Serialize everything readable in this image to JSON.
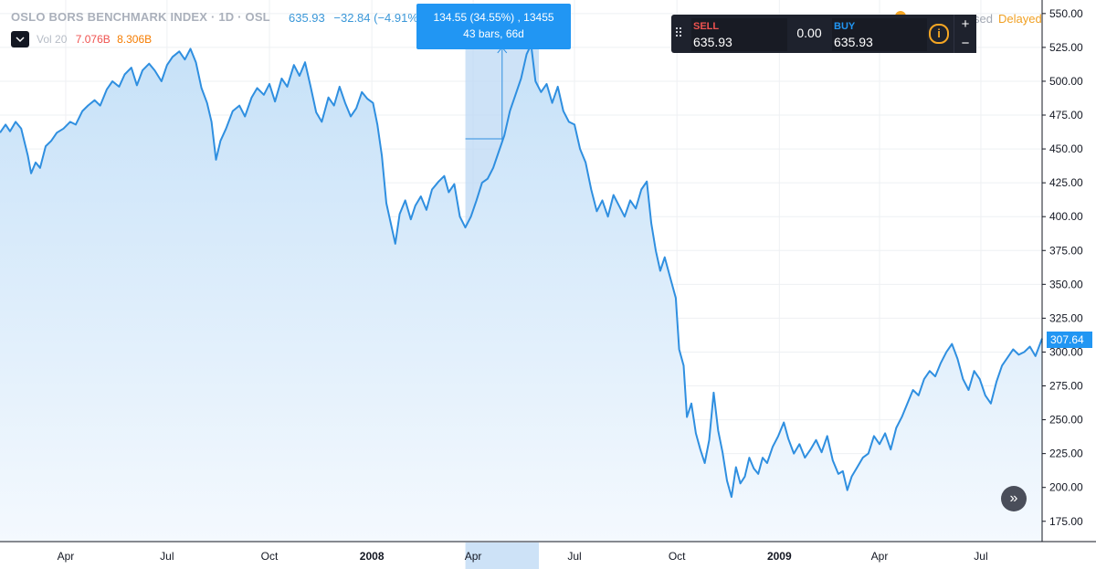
{
  "legend": {
    "title": "OSLO BORS BENCHMARK INDEX · 1D · OSL",
    "last": "635.93",
    "change": "−32.84 (−4.91%)",
    "vol_label": "Vol 20",
    "vol_a": "7.076B",
    "vol_b": "8.306B"
  },
  "status": {
    "closed_fragment": "sed",
    "delayed": "Delayed"
  },
  "trade_panel": {
    "sell_label": "SELL",
    "sell_value": "635.93",
    "spread": "0.00",
    "buy_label": "BUY",
    "buy_value": "635.93",
    "info_icon": "info-icon",
    "zoom_in": "+",
    "zoom_out": "−"
  },
  "measure": {
    "line1": "134.55 (34.55%) , 13455",
    "line2": "43 bars, 66d"
  },
  "scroll_button": "»",
  "price_tag": "307.64",
  "colors": {
    "line": "#2f8fe0",
    "fill_top": "#c6e1f8",
    "fill_bottom": "#f4f9fe",
    "grid": "#eef0f3",
    "axis_text": "#131722",
    "measure_fill": "#bcd8f4"
  },
  "chart_data": {
    "type": "area",
    "title": "OSLO BORS BENCHMARK INDEX",
    "xlabel": "",
    "ylabel": "",
    "grid": true,
    "legend": "top-left",
    "ylim": [
      160,
      560
    ],
    "xlim": [
      "2007-02-01",
      "2009-08-25"
    ],
    "y_ticks": [
      550,
      525,
      500,
      475,
      450,
      425,
      400,
      375,
      350,
      325,
      300,
      275,
      250,
      225,
      200,
      175
    ],
    "x_ticks": [
      {
        "date": "2007-04-01",
        "label": "Apr"
      },
      {
        "date": "2007-07-01",
        "label": "Jul"
      },
      {
        "date": "2007-10-01",
        "label": "Oct"
      },
      {
        "date": "2008-01-01",
        "label": "2008"
      },
      {
        "date": "2008-04-01",
        "label": "Apr"
      },
      {
        "date": "2008-07-01",
        "label": "Jul"
      },
      {
        "date": "2008-10-01",
        "label": "Oct"
      },
      {
        "date": "2009-01-01",
        "label": "2009"
      },
      {
        "date": "2009-04-01",
        "label": "Apr"
      },
      {
        "date": "2009-07-01",
        "label": "Jul"
      }
    ],
    "measure_range": {
      "x": [
        "2008-03-25",
        "2008-05-30"
      ],
      "y": [
        390,
        525
      ]
    },
    "series": [
      {
        "values": [
          [
            "2007-02-01",
            462
          ],
          [
            "2007-02-06",
            468
          ],
          [
            "2007-02-10",
            463
          ],
          [
            "2007-02-15",
            470
          ],
          [
            "2007-02-20",
            465
          ],
          [
            "2007-02-26",
            445
          ],
          [
            "2007-03-01",
            432
          ],
          [
            "2007-03-05",
            440
          ],
          [
            "2007-03-09",
            436
          ],
          [
            "2007-03-14",
            452
          ],
          [
            "2007-03-19",
            456
          ],
          [
            "2007-03-24",
            462
          ],
          [
            "2007-03-30",
            465
          ],
          [
            "2007-04-05",
            470
          ],
          [
            "2007-04-10",
            468
          ],
          [
            "2007-04-16",
            478
          ],
          [
            "2007-04-21",
            482
          ],
          [
            "2007-04-27",
            486
          ],
          [
            "2007-05-02",
            482
          ],
          [
            "2007-05-08",
            494
          ],
          [
            "2007-05-13",
            500
          ],
          [
            "2007-05-19",
            496
          ],
          [
            "2007-05-24",
            505
          ],
          [
            "2007-05-30",
            510
          ],
          [
            "2007-06-04",
            497
          ],
          [
            "2007-06-09",
            508
          ],
          [
            "2007-06-15",
            513
          ],
          [
            "2007-06-20",
            508
          ],
          [
            "2007-06-26",
            500
          ],
          [
            "2007-07-01",
            512
          ],
          [
            "2007-07-06",
            518
          ],
          [
            "2007-07-12",
            522
          ],
          [
            "2007-07-17",
            516
          ],
          [
            "2007-07-22",
            524
          ],
          [
            "2007-07-27",
            514
          ],
          [
            "2007-08-01",
            495
          ],
          [
            "2007-08-06",
            484
          ],
          [
            "2007-08-10",
            470
          ],
          [
            "2007-08-14",
            442
          ],
          [
            "2007-08-18",
            456
          ],
          [
            "2007-08-23",
            465
          ],
          [
            "2007-08-29",
            478
          ],
          [
            "2007-09-04",
            482
          ],
          [
            "2007-09-09",
            474
          ],
          [
            "2007-09-15",
            488
          ],
          [
            "2007-09-20",
            495
          ],
          [
            "2007-09-26",
            490
          ],
          [
            "2007-10-01",
            498
          ],
          [
            "2007-10-06",
            485
          ],
          [
            "2007-10-12",
            502
          ],
          [
            "2007-10-17",
            496
          ],
          [
            "2007-10-23",
            512
          ],
          [
            "2007-10-28",
            504
          ],
          [
            "2007-11-02",
            514
          ],
          [
            "2007-11-07",
            496
          ],
          [
            "2007-11-12",
            477
          ],
          [
            "2007-11-17",
            470
          ],
          [
            "2007-11-23",
            488
          ],
          [
            "2007-11-28",
            482
          ],
          [
            "2007-12-03",
            496
          ],
          [
            "2007-12-08",
            484
          ],
          [
            "2007-12-13",
            474
          ],
          [
            "2007-12-18",
            480
          ],
          [
            "2007-12-23",
            492
          ],
          [
            "2007-12-28",
            487
          ],
          [
            "2008-01-02",
            484
          ],
          [
            "2008-01-06",
            468
          ],
          [
            "2008-01-10",
            445
          ],
          [
            "2008-01-14",
            410
          ],
          [
            "2008-01-18",
            395
          ],
          [
            "2008-01-22",
            380
          ],
          [
            "2008-01-26",
            402
          ],
          [
            "2008-01-31",
            412
          ],
          [
            "2008-02-05",
            398
          ],
          [
            "2008-02-09",
            408
          ],
          [
            "2008-02-14",
            415
          ],
          [
            "2008-02-19",
            405
          ],
          [
            "2008-02-24",
            420
          ],
          [
            "2008-03-01",
            426
          ],
          [
            "2008-03-06",
            430
          ],
          [
            "2008-03-10",
            418
          ],
          [
            "2008-03-15",
            424
          ],
          [
            "2008-03-20",
            400
          ],
          [
            "2008-03-25",
            392
          ],
          [
            "2008-03-30",
            400
          ],
          [
            "2008-04-04",
            412
          ],
          [
            "2008-04-09",
            425
          ],
          [
            "2008-04-14",
            428
          ],
          [
            "2008-04-19",
            436
          ],
          [
            "2008-04-24",
            448
          ],
          [
            "2008-04-29",
            460
          ],
          [
            "2008-05-04",
            478
          ],
          [
            "2008-05-09",
            490
          ],
          [
            "2008-05-14",
            502
          ],
          [
            "2008-05-19",
            520
          ],
          [
            "2008-05-23",
            527
          ],
          [
            "2008-05-27",
            500
          ],
          [
            "2008-06-01",
            492
          ],
          [
            "2008-06-06",
            498
          ],
          [
            "2008-06-11",
            484
          ],
          [
            "2008-06-16",
            496
          ],
          [
            "2008-06-21",
            478
          ],
          [
            "2008-06-26",
            470
          ],
          [
            "2008-07-01",
            468
          ],
          [
            "2008-07-06",
            450
          ],
          [
            "2008-07-11",
            440
          ],
          [
            "2008-07-16",
            420
          ],
          [
            "2008-07-21",
            404
          ],
          [
            "2008-07-26",
            412
          ],
          [
            "2008-07-31",
            400
          ],
          [
            "2008-08-05",
            416
          ],
          [
            "2008-08-10",
            408
          ],
          [
            "2008-08-15",
            400
          ],
          [
            "2008-08-20",
            412
          ],
          [
            "2008-08-25",
            406
          ],
          [
            "2008-08-30",
            420
          ],
          [
            "2008-09-04",
            426
          ],
          [
            "2008-09-08",
            395
          ],
          [
            "2008-09-12",
            375
          ],
          [
            "2008-09-16",
            360
          ],
          [
            "2008-09-20",
            370
          ],
          [
            "2008-09-25",
            355
          ],
          [
            "2008-09-30",
            340
          ],
          [
            "2008-10-03",
            302
          ],
          [
            "2008-10-07",
            290
          ],
          [
            "2008-10-10",
            252
          ],
          [
            "2008-10-14",
            262
          ],
          [
            "2008-10-18",
            240
          ],
          [
            "2008-10-22",
            228
          ],
          [
            "2008-10-26",
            218
          ],
          [
            "2008-10-30",
            235
          ],
          [
            "2008-11-03",
            270
          ],
          [
            "2008-11-07",
            242
          ],
          [
            "2008-11-11",
            226
          ],
          [
            "2008-11-15",
            205
          ],
          [
            "2008-11-19",
            193
          ],
          [
            "2008-11-23",
            215
          ],
          [
            "2008-11-27",
            203
          ],
          [
            "2008-12-01",
            208
          ],
          [
            "2008-12-05",
            222
          ],
          [
            "2008-12-09",
            214
          ],
          [
            "2008-12-13",
            210
          ],
          [
            "2008-12-17",
            222
          ],
          [
            "2008-12-21",
            218
          ],
          [
            "2008-12-26",
            230
          ],
          [
            "2008-12-31",
            238
          ],
          [
            "2009-01-05",
            248
          ],
          [
            "2009-01-09",
            236
          ],
          [
            "2009-01-14",
            225
          ],
          [
            "2009-01-19",
            232
          ],
          [
            "2009-01-24",
            222
          ],
          [
            "2009-01-29",
            228
          ],
          [
            "2009-02-03",
            235
          ],
          [
            "2009-02-08",
            226
          ],
          [
            "2009-02-13",
            238
          ],
          [
            "2009-02-18",
            220
          ],
          [
            "2009-02-23",
            210
          ],
          [
            "2009-02-27",
            212
          ],
          [
            "2009-03-03",
            198
          ],
          [
            "2009-03-07",
            208
          ],
          [
            "2009-03-12",
            215
          ],
          [
            "2009-03-17",
            222
          ],
          [
            "2009-03-22",
            225
          ],
          [
            "2009-03-27",
            238
          ],
          [
            "2009-04-01",
            232
          ],
          [
            "2009-04-06",
            240
          ],
          [
            "2009-04-11",
            228
          ],
          [
            "2009-04-16",
            244
          ],
          [
            "2009-04-21",
            252
          ],
          [
            "2009-04-26",
            262
          ],
          [
            "2009-05-01",
            272
          ],
          [
            "2009-05-06",
            268
          ],
          [
            "2009-05-11",
            280
          ],
          [
            "2009-05-16",
            286
          ],
          [
            "2009-05-21",
            282
          ],
          [
            "2009-05-26",
            292
          ],
          [
            "2009-05-31",
            300
          ],
          [
            "2009-06-05",
            306
          ],
          [
            "2009-06-10",
            295
          ],
          [
            "2009-06-15",
            280
          ],
          [
            "2009-06-20",
            272
          ],
          [
            "2009-06-25",
            286
          ],
          [
            "2009-06-30",
            280
          ],
          [
            "2009-07-05",
            268
          ],
          [
            "2009-07-10",
            262
          ],
          [
            "2009-07-15",
            278
          ],
          [
            "2009-07-20",
            290
          ],
          [
            "2009-07-25",
            296
          ],
          [
            "2009-07-30",
            302
          ],
          [
            "2009-08-04",
            298
          ],
          [
            "2009-08-09",
            300
          ],
          [
            "2009-08-14",
            304
          ],
          [
            "2009-08-19",
            297
          ],
          [
            "2009-08-25",
            310
          ]
        ]
      }
    ]
  }
}
